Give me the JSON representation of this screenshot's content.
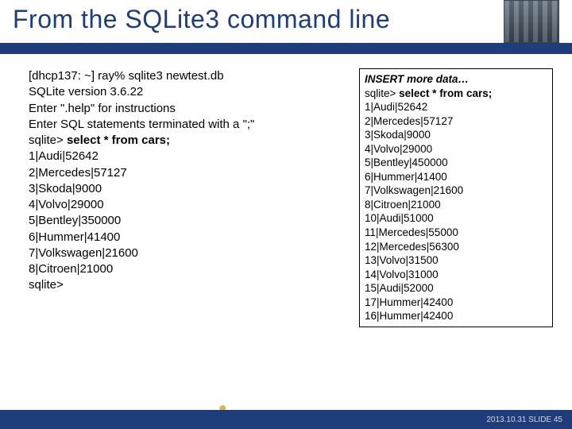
{
  "title": "From the SQLite3 command line",
  "left": {
    "lines": [
      {
        "text": "[dhcp137: ~] ray% sqlite3 newtest.db",
        "cls": ""
      },
      {
        "text": "SQLite version 3.6.22",
        "cls": ""
      },
      {
        "text": "Enter \".help\" for instructions",
        "cls": ""
      },
      {
        "text": "Enter SQL statements terminated with a \";\"",
        "cls": ""
      },
      {
        "text": "sqlite> ",
        "cls": "",
        "tail": "select * from cars;",
        "tailCls": "bold"
      },
      {
        "text": "1|Audi|52642",
        "cls": ""
      },
      {
        "text": "2|Mercedes|57127",
        "cls": ""
      },
      {
        "text": "3|Skoda|9000",
        "cls": ""
      },
      {
        "text": "4|Volvo|29000",
        "cls": ""
      },
      {
        "text": "5|Bentley|350000",
        "cls": ""
      },
      {
        "text": "6|Hummer|41400",
        "cls": ""
      },
      {
        "text": "7|Volkswagen|21600",
        "cls": ""
      },
      {
        "text": "8|Citroen|21000",
        "cls": ""
      },
      {
        "text": "sqlite>",
        "cls": ""
      }
    ]
  },
  "right": {
    "lines": [
      {
        "text": "INSERT more data…",
        "cls": "ital-bold"
      },
      {
        "text": "sqlite> ",
        "cls": "",
        "tail": "select * from cars;",
        "tailCls": "bold"
      },
      {
        "text": "1|Audi|52642",
        "cls": ""
      },
      {
        "text": "2|Mercedes|57127",
        "cls": ""
      },
      {
        "text": "3|Skoda|9000",
        "cls": ""
      },
      {
        "text": "4|Volvo|29000",
        "cls": ""
      },
      {
        "text": "5|Bentley|450000",
        "cls": ""
      },
      {
        "text": "6|Hummer|41400",
        "cls": ""
      },
      {
        "text": "7|Volkswagen|21600",
        "cls": ""
      },
      {
        "text": "8|Citroen|21000",
        "cls": ""
      },
      {
        "text": "10|Audi|51000",
        "cls": ""
      },
      {
        "text": "11|Mercedes|55000",
        "cls": ""
      },
      {
        "text": "12|Mercedes|56300",
        "cls": ""
      },
      {
        "text": "13|Volvo|31500",
        "cls": ""
      },
      {
        "text": "14|Volvo|31000",
        "cls": ""
      },
      {
        "text": "15|Audi|52000",
        "cls": ""
      },
      {
        "text": "17|Hummer|42400",
        "cls": ""
      },
      {
        "text": "16|Hummer|42400",
        "cls": ""
      }
    ]
  },
  "footer": {
    "logo_text": "UC Berkeley School of Information",
    "slide_info": "2013.10.31 SLIDE 45"
  },
  "colors": {
    "accent": "#1f3d7a",
    "bg": "#ffffff"
  }
}
